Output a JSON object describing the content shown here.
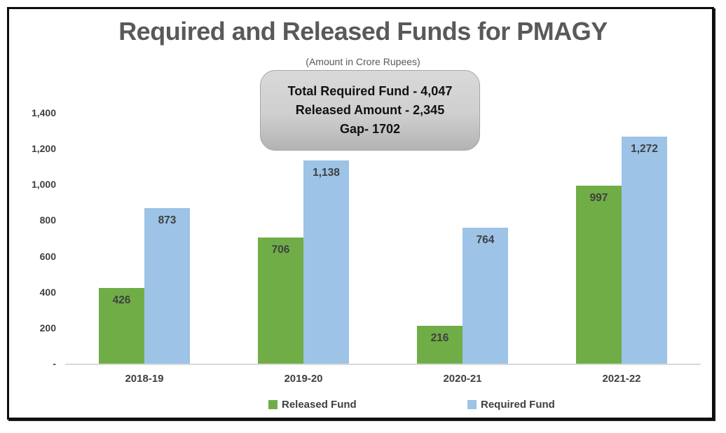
{
  "chart_data": {
    "type": "bar",
    "title": "Required and Released Funds for PMAGY",
    "subtitle": "(Amount in Crore Rupees)",
    "annotation": {
      "lines": [
        "Total Required Fund - 4,047",
        "Released Amount - 2,345",
        "Gap- 1702"
      ]
    },
    "categories": [
      "2018-19",
      "2019-20",
      "2020-21",
      "2021-22"
    ],
    "series": [
      {
        "name": "Released Fund",
        "color": "#70AD47",
        "values": [
          426,
          706,
          216,
          997
        ],
        "labels": [
          "426",
          "706",
          "216",
          "997"
        ]
      },
      {
        "name": "Required Fund",
        "color": "#9DC3E6",
        "values": [
          873,
          1138,
          764,
          1272
        ],
        "labels": [
          "873",
          "1,138",
          "764",
          "1,272"
        ]
      }
    ],
    "y_axis": {
      "ylim": [
        0,
        1400
      ],
      "tick_interval": 200,
      "ticks": [
        {
          "value": 1400,
          "label": "1,400"
        },
        {
          "value": 1200,
          "label": "1,200"
        },
        {
          "value": 1000,
          "label": "1,000"
        },
        {
          "value": 800,
          "label": "800"
        },
        {
          "value": 600,
          "label": "600"
        },
        {
          "value": 400,
          "label": "400"
        },
        {
          "value": 200,
          "label": "200"
        },
        {
          "value": 0,
          "label": "-"
        }
      ]
    },
    "legend_position": "bottom",
    "grid": false
  },
  "colors": {
    "released_fund": "#70AD47",
    "required_fund": "#9DC3E6",
    "title_text": "#595959",
    "axis_text": "#404040",
    "axis_line": "#D9D9D9",
    "annotation_fill_top": "#D9D9D9",
    "annotation_fill_bottom": "#B3B3B3",
    "frame_border": "#0C0C0C"
  }
}
